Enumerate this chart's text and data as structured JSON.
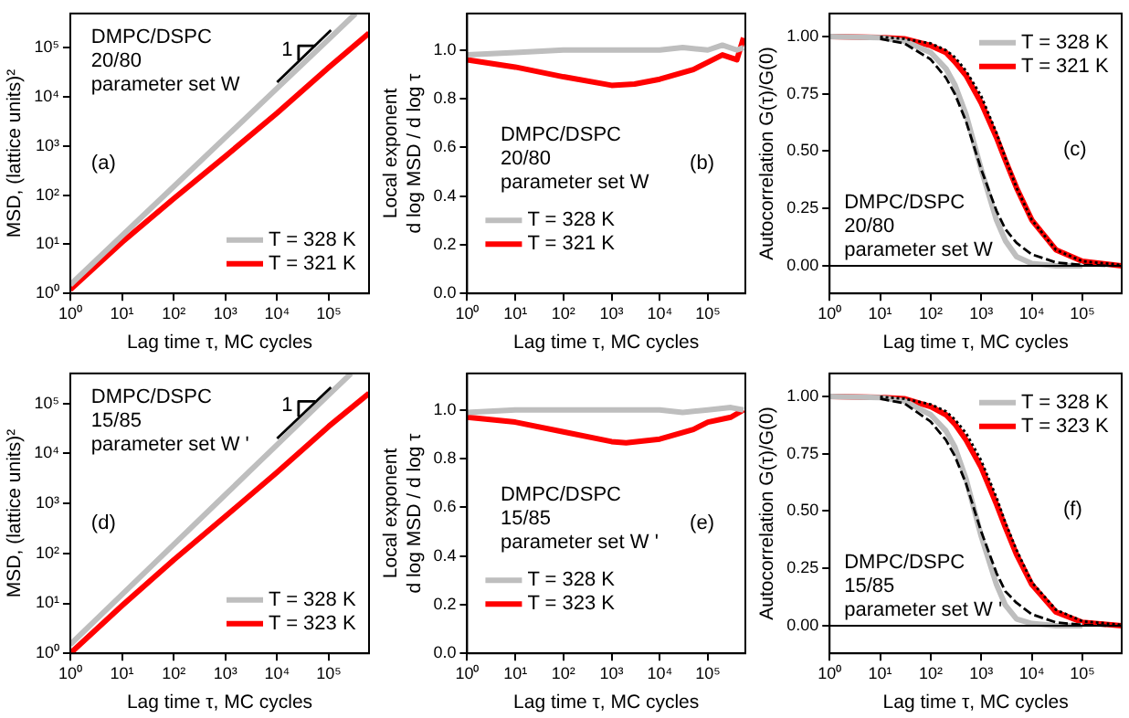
{
  "chart_data": [
    {
      "type": "line",
      "xlabel": "Lag time τ, MC cycles",
      "ylabel": "MSD, (lattice units)²",
      "log": "xy",
      "marker": "none",
      "legend": "bottom right",
      "annotations": [
        "DMPC/DSPC\n20/80\nparameter set W",
        "(a)",
        {
          "text": "1",
          "x": 20000,
          "y": 90000
        }
      ],
      "xlim": [
        1,
        600000
      ],
      "ylim": [
        1,
        500000
      ],
      "xticks": [
        {
          "value": 1,
          "label": "10⁰"
        },
        {
          "value": 10,
          "label": "10¹"
        },
        {
          "value": 100,
          "label": "10²"
        },
        {
          "value": 1000,
          "label": "10³"
        },
        {
          "value": 10000,
          "label": "10⁴"
        },
        {
          "value": 100000,
          "label": "10⁵"
        }
      ],
      "yticks": [
        {
          "value": 1,
          "label": "10⁰"
        },
        {
          "value": 10,
          "label": "10¹"
        },
        {
          "value": 100,
          "label": "10²"
        },
        {
          "value": 1000,
          "label": "10³"
        },
        {
          "value": 10000,
          "label": "10⁴"
        },
        {
          "value": 100000,
          "label": "10⁵"
        }
      ],
      "series": [
        {
          "name": "T = 328 K",
          "color": "#bebebe",
          "x": [
            1,
            10,
            100,
            1000,
            10000,
            100000,
            330000
          ],
          "values": [
            1.5,
            15,
            150,
            1500,
            15000,
            150000,
            500000
          ]
        },
        {
          "name": "T = 321 K",
          "color": "#ff0000",
          "x": [
            1,
            10,
            100,
            1000,
            10000,
            100000,
            600000
          ],
          "values": [
            1.2,
            11,
            85,
            620,
            4700,
            40000,
            200000
          ]
        },
        {
          "color": "#000000",
          "x": [
            10000,
            110000
          ],
          "values": [
            20000,
            230000
          ]
        },
        {
          "color": "#000000",
          "x": [
            26000,
            26000,
            55000
          ],
          "values": [
            55000,
            110000,
            110000
          ]
        }
      ]
    },
    {
      "type": "line",
      "xlabel": "Lag time τ, MC cycles",
      "ylabel": "Local exponent\nd log MSD / d log τ",
      "log": "x",
      "marker": "none",
      "legend": "bottom left",
      "annotations": [
        "DMPC/DSPC\n20/80\nparameter set W",
        "(b)"
      ],
      "xlim": [
        1,
        600000
      ],
      "ylim": [
        0,
        1.15
      ],
      "xticks": [
        {
          "value": 1,
          "label": "10⁰"
        },
        {
          "value": 10,
          "label": "10¹"
        },
        {
          "value": 100,
          "label": "10²"
        },
        {
          "value": 1000,
          "label": "10³"
        },
        {
          "value": 10000,
          "label": "10⁴"
        },
        {
          "value": 100000,
          "label": "10⁵"
        }
      ],
      "yticks": [
        {
          "value": 0,
          "label": "0.0"
        },
        0.2,
        0.4,
        0.6,
        0.8,
        {
          "value": 1,
          "label": "1.0"
        }
      ],
      "series": [
        {
          "name": "T = 328 K",
          "color": "#bebebe",
          "x": [
            1,
            10,
            100,
            1000,
            10000,
            30000,
            100000,
            200000,
            400000,
            550000
          ],
          "values": [
            0.98,
            0.99,
            1.0,
            1.0,
            1.0,
            1.01,
            1.0,
            1.02,
            1.0,
            1.01
          ]
        },
        {
          "name": "T = 321 K",
          "color": "#ff0000",
          "x": [
            1,
            10,
            100,
            1000,
            3000,
            10000,
            50000,
            100000,
            200000,
            400000,
            550000
          ],
          "values": [
            0.96,
            0.93,
            0.89,
            0.855,
            0.86,
            0.88,
            0.92,
            0.95,
            0.98,
            0.96,
            1.05
          ]
        }
      ]
    },
    {
      "type": "line",
      "xlabel": "Lag time τ, MC cycles",
      "ylabel": "Autocorrelation G(τ)/G(0)",
      "log": "x",
      "marker": "none",
      "legend": "top right",
      "annotations": [
        "DMPC/DSPC\n20/80\nparameter set W",
        "(c)"
      ],
      "xlim": [
        1,
        600000
      ],
      "ylim": [
        -0.12,
        1.1
      ],
      "xticks": [
        {
          "value": 1,
          "label": "10⁰"
        },
        {
          "value": 10,
          "label": "10¹"
        },
        {
          "value": 100,
          "label": "10²"
        },
        {
          "value": 1000,
          "label": "10³"
        },
        {
          "value": 10000,
          "label": "10⁴"
        },
        {
          "value": 100000,
          "label": "10⁵"
        }
      ],
      "yticks": [
        {
          "value": 0,
          "label": "0.00"
        },
        0.25,
        {
          "value": 0.5,
          "label": "0.50"
        },
        0.75,
        {
          "value": 1,
          "label": "1.00"
        }
      ],
      "ref_lines": [
        {
          "axis": "y",
          "value": 0,
          "color": "#000000"
        }
      ],
      "series": [
        {
          "name": "T = 328 K",
          "color": "#bebebe",
          "x": [
            1,
            10,
            30,
            100,
            200,
            300,
            500,
            1000,
            2000,
            3000,
            5000,
            10000,
            30000,
            100000
          ],
          "values": [
            1.0,
            0.995,
            0.98,
            0.93,
            0.86,
            0.79,
            0.66,
            0.42,
            0.2,
            0.11,
            0.04,
            0.01,
            0,
            0
          ]
        },
        {
          "name": "T = 321 K",
          "color": "#ff0000",
          "x": [
            1,
            10,
            30,
            100,
            200,
            300,
            500,
            1000,
            2000,
            3000,
            5000,
            10000,
            30000,
            100000,
            600000
          ],
          "values": [
            1.0,
            0.996,
            0.99,
            0.96,
            0.93,
            0.89,
            0.83,
            0.71,
            0.56,
            0.46,
            0.34,
            0.2,
            0.07,
            0.02,
            0
          ]
        },
        {
          "color": "#000000",
          "line_style": "dashed",
          "x": [
            10,
            30,
            100,
            200,
            300,
            500,
            1000,
            2000,
            3000,
            5000,
            10000,
            30000,
            100000,
            300000
          ],
          "values": [
            0.99,
            0.97,
            0.9,
            0.82,
            0.75,
            0.63,
            0.42,
            0.24,
            0.16,
            0.1,
            0.05,
            0.015,
            0.004,
            0.001
          ]
        },
        {
          "color": "#000000",
          "line_style": "dotted",
          "x": [
            10,
            30,
            100,
            200,
            300,
            500,
            1000,
            2000,
            3000,
            5000,
            10000,
            30000,
            100000,
            600000
          ],
          "values": [
            0.998,
            0.99,
            0.97,
            0.94,
            0.91,
            0.85,
            0.74,
            0.58,
            0.47,
            0.34,
            0.2,
            0.07,
            0.02,
            0.004
          ]
        }
      ]
    },
    {
      "type": "line",
      "xlabel": "Lag time τ, MC cycles",
      "ylabel": "MSD, (lattice units)²",
      "log": "xy",
      "marker": "none",
      "legend": "bottom right",
      "annotations": [
        "DMPC/DSPC\n15/85\nparameter set W '",
        "(d)",
        {
          "text": "1",
          "x": 20000,
          "y": 90000
        }
      ],
      "xlim": [
        1,
        600000
      ],
      "ylim": [
        1,
        400000
      ],
      "xticks": [
        {
          "value": 1,
          "label": "10⁰"
        },
        {
          "value": 10,
          "label": "10¹"
        },
        {
          "value": 100,
          "label": "10²"
        },
        {
          "value": 1000,
          "label": "10³"
        },
        {
          "value": 10000,
          "label": "10⁴"
        },
        {
          "value": 100000,
          "label": "10⁵"
        }
      ],
      "yticks": [
        {
          "value": 1,
          "label": "10⁰"
        },
        {
          "value": 10,
          "label": "10¹"
        },
        {
          "value": 100,
          "label": "10²"
        },
        {
          "value": 1000,
          "label": "10³"
        },
        {
          "value": 10000,
          "label": "10⁴"
        },
        {
          "value": 100000,
          "label": "10⁵"
        }
      ],
      "series": [
        {
          "name": "T = 328 K",
          "color": "#bebebe",
          "x": [
            1,
            10,
            100,
            1000,
            10000,
            100000,
            270000
          ],
          "values": [
            1.5,
            15,
            150,
            1500,
            15000,
            150000,
            400000
          ]
        },
        {
          "name": "T = 323 K",
          "color": "#ff0000",
          "x": [
            1,
            10,
            100,
            1000,
            10000,
            100000,
            600000
          ],
          "values": [
            1,
            9,
            74,
            550,
            4200,
            35000,
            160000
          ]
        },
        {
          "color": "#000000",
          "x": [
            10000,
            110000
          ],
          "values": [
            20000,
            210000
          ]
        },
        {
          "color": "#000000",
          "x": [
            26000,
            26000,
            55000
          ],
          "values": [
            55000,
            110000,
            110000
          ]
        }
      ]
    },
    {
      "type": "line",
      "xlabel": "Lag time τ, MC cycles",
      "ylabel": "Local exponent\nd log MSD / d log τ",
      "log": "x",
      "marker": "none",
      "legend": "bottom left",
      "annotations": [
        "DMPC/DSPC\n15/85\nparameter set W '",
        "(e)"
      ],
      "xlim": [
        1,
        600000
      ],
      "ylim": [
        0,
        1.15
      ],
      "xticks": [
        {
          "value": 1,
          "label": "10⁰"
        },
        {
          "value": 10,
          "label": "10¹"
        },
        {
          "value": 100,
          "label": "10²"
        },
        {
          "value": 1000,
          "label": "10³"
        },
        {
          "value": 10000,
          "label": "10⁴"
        },
        {
          "value": 100000,
          "label": "10⁵"
        }
      ],
      "yticks": [
        {
          "value": 0,
          "label": "0.0"
        },
        0.2,
        0.4,
        0.6,
        0.8,
        {
          "value": 1,
          "label": "1.0"
        }
      ],
      "series": [
        {
          "name": "T = 328 K",
          "color": "#bebebe",
          "x": [
            1,
            10,
            100,
            1000,
            10000,
            30000,
            100000,
            300000,
            550000
          ],
          "values": [
            0.99,
            1.0,
            1.0,
            1.0,
            1.0,
            0.99,
            1.0,
            1.01,
            1.0
          ]
        },
        {
          "name": "T = 323 K",
          "color": "#ff0000",
          "x": [
            1,
            10,
            100,
            1000,
            2000,
            10000,
            50000,
            100000,
            300000,
            550000
          ],
          "values": [
            0.97,
            0.95,
            0.91,
            0.87,
            0.865,
            0.88,
            0.92,
            0.95,
            0.97,
            1.0
          ]
        }
      ]
    },
    {
      "type": "line",
      "xlabel": "Lag time τ, MC cycles",
      "ylabel": "Autocorrelation G(τ)/G(0)",
      "log": "x",
      "marker": "none",
      "legend": "top right",
      "annotations": [
        "DMPC/DSPC\n15/85\nparameter set W '",
        "(f)"
      ],
      "xlim": [
        1,
        600000
      ],
      "ylim": [
        -0.12,
        1.1
      ],
      "xticks": [
        {
          "value": 1,
          "label": "10⁰"
        },
        {
          "value": 10,
          "label": "10¹"
        },
        {
          "value": 100,
          "label": "10²"
        },
        {
          "value": 1000,
          "label": "10³"
        },
        {
          "value": 10000,
          "label": "10⁴"
        },
        {
          "value": 100000,
          "label": "10⁵"
        }
      ],
      "yticks": [
        {
          "value": 0,
          "label": "0.00"
        },
        0.25,
        {
          "value": 0.5,
          "label": "0.50"
        },
        0.75,
        {
          "value": 1,
          "label": "1.00"
        }
      ],
      "ref_lines": [
        {
          "axis": "y",
          "value": 0,
          "color": "#000000"
        }
      ],
      "series": [
        {
          "name": "T = 328 K",
          "color": "#bebebe",
          "x": [
            1,
            10,
            30,
            100,
            200,
            300,
            500,
            1000,
            2000,
            3000,
            5000,
            10000,
            30000,
            100000
          ],
          "values": [
            1.0,
            0.995,
            0.98,
            0.92,
            0.85,
            0.78,
            0.64,
            0.39,
            0.18,
            0.09,
            0.03,
            0.01,
            0,
            0
          ]
        },
        {
          "name": "T = 323 K",
          "color": "#ff0000",
          "x": [
            1,
            10,
            30,
            100,
            200,
            300,
            500,
            1000,
            2000,
            3000,
            5000,
            10000,
            30000,
            100000,
            600000
          ],
          "values": [
            1.0,
            0.996,
            0.99,
            0.955,
            0.92,
            0.88,
            0.81,
            0.69,
            0.53,
            0.43,
            0.31,
            0.18,
            0.06,
            0.015,
            0
          ]
        },
        {
          "color": "#000000",
          "line_style": "dashed",
          "x": [
            10,
            30,
            100,
            200,
            300,
            500,
            1000,
            2000,
            3000,
            5000,
            10000,
            30000,
            100000,
            300000
          ],
          "values": [
            0.99,
            0.97,
            0.89,
            0.81,
            0.74,
            0.62,
            0.41,
            0.23,
            0.15,
            0.1,
            0.05,
            0.015,
            0.004,
            0.001
          ]
        },
        {
          "color": "#000000",
          "line_style": "dotted",
          "x": [
            10,
            30,
            100,
            200,
            300,
            500,
            1000,
            2000,
            3000,
            5000,
            10000,
            30000,
            100000,
            600000
          ],
          "values": [
            0.998,
            0.99,
            0.965,
            0.935,
            0.9,
            0.84,
            0.72,
            0.56,
            0.45,
            0.33,
            0.19,
            0.07,
            0.02,
            0.004
          ]
        }
      ]
    }
  ]
}
